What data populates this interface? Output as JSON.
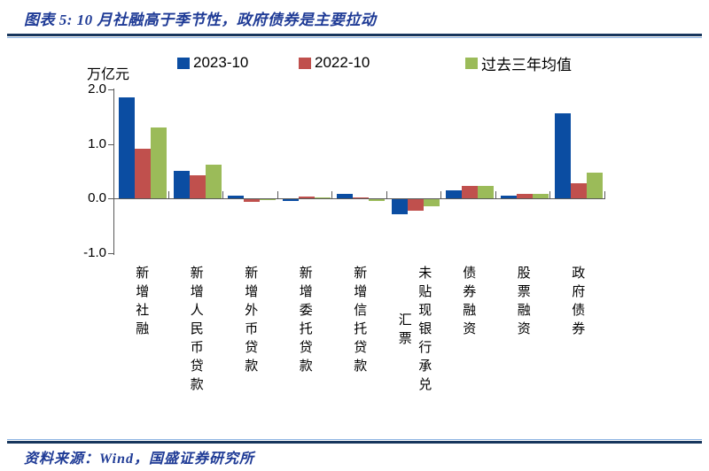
{
  "header": {
    "title": "图表 5:  10 月社融高于季节性，政府债券是主要拉动"
  },
  "footer": {
    "source": "资料来源：Wind，国盛证券研究所"
  },
  "colors": {
    "brand_navy_text": "#1F3B96",
    "rule_dark": "#17365D",
    "rule_light": "#8DB4E2",
    "axis_gray": "#595959",
    "series_blue": "#0B4DA2",
    "series_red": "#C0504D",
    "series_green": "#9BBB59"
  },
  "chart_data": {
    "type": "bar",
    "title": "",
    "unit_label": "万亿元",
    "categories": [
      "新增社融",
      "新增人民币贷款",
      "新增外币贷款",
      "新增委托贷款",
      "新增信托贷款",
      "未贴现银行承兑汇票",
      "债券融资",
      "股票融资",
      "政府债券"
    ],
    "category_lines": [
      [
        "新增社融"
      ],
      [
        "新增人民币贷款"
      ],
      [
        "新增外币贷款"
      ],
      [
        "新增委托贷款"
      ],
      [
        "新增信托贷款"
      ],
      [
        "未贴现银行承兑",
        "汇票"
      ],
      [
        "债券融资"
      ],
      [
        "股票融资"
      ],
      [
        "政府债券"
      ]
    ],
    "series": [
      {
        "name": "2023-10",
        "color": "#0B4DA2",
        "values": [
          1.85,
          0.5,
          0.05,
          -0.05,
          0.08,
          -0.3,
          0.15,
          0.05,
          1.56
        ]
      },
      {
        "name": "2022-10",
        "color": "#C0504D",
        "values": [
          0.91,
          0.43,
          -0.06,
          0.04,
          0.01,
          -0.22,
          0.23,
          0.08,
          0.27
        ]
      },
      {
        "name": "过去三年均值",
        "color": "#9BBB59",
        "values": [
          1.3,
          0.62,
          -0.03,
          0.01,
          -0.05,
          -0.15,
          0.23,
          0.08,
          0.47
        ]
      }
    ],
    "ylim": [
      -1.0,
      2.0
    ],
    "yticks": [
      2.0,
      1.0,
      0.0,
      -1.0
    ],
    "ytick_labels": [
      "2.0",
      "1.0",
      "0.0",
      "-1.0"
    ],
    "legend_position": "top",
    "grid": false
  }
}
